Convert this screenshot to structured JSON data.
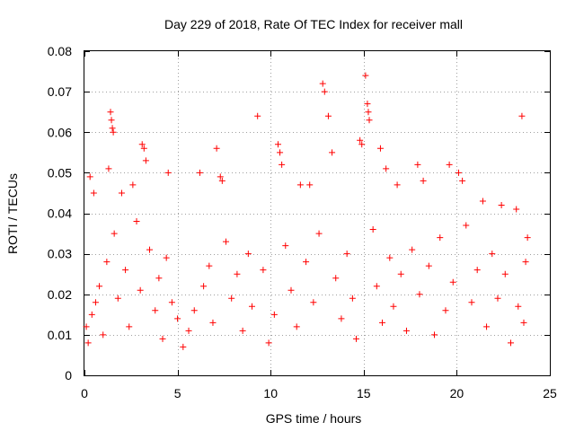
{
  "chart_data": {
    "type": "scatter",
    "title": "Day 229 of 2018, Rate Of TEC Index for receiver mall",
    "xlabel": "GPS time / hours",
    "ylabel": "ROTI / TECUs",
    "xlim": [
      0,
      25
    ],
    "ylim": [
      0,
      0.08
    ],
    "x_ticks": [
      0,
      5,
      10,
      15,
      20,
      25
    ],
    "y_ticks": [
      0,
      0.01,
      0.02,
      0.03,
      0.04,
      0.05,
      0.06,
      0.07,
      0.08
    ],
    "x_tick_labels": [
      "0",
      "5",
      "10",
      "15",
      "20",
      "25"
    ],
    "y_tick_labels": [
      "0",
      "0.01",
      "0.02",
      "0.03",
      "0.04",
      "0.05",
      "0.06",
      "0.07",
      "0.08"
    ],
    "grid": true,
    "marker": "+",
    "color": "#ff0000",
    "series": [
      {
        "name": "ROTI",
        "points": [
          [
            0.3,
            0.049
          ],
          [
            0.5,
            0.045
          ],
          [
            1.3,
            0.051
          ],
          [
            1.4,
            0.065
          ],
          [
            1.45,
            0.063
          ],
          [
            1.5,
            0.061
          ],
          [
            1.55,
            0.06
          ],
          [
            2.0,
            0.045
          ],
          [
            2.6,
            0.047
          ],
          [
            3.1,
            0.057
          ],
          [
            3.2,
            0.056
          ],
          [
            3.3,
            0.053
          ],
          [
            4.5,
            0.05
          ],
          [
            6.2,
            0.05
          ],
          [
            7.1,
            0.056
          ],
          [
            7.3,
            0.049
          ],
          [
            7.4,
            0.048
          ],
          [
            9.3,
            0.064
          ],
          [
            10.4,
            0.057
          ],
          [
            10.5,
            0.055
          ],
          [
            10.6,
            0.052
          ],
          [
            11.6,
            0.047
          ],
          [
            12.1,
            0.047
          ],
          [
            12.8,
            0.072
          ],
          [
            12.9,
            0.07
          ],
          [
            13.1,
            0.064
          ],
          [
            13.3,
            0.055
          ],
          [
            14.8,
            0.058
          ],
          [
            14.9,
            0.057
          ],
          [
            15.1,
            0.074
          ],
          [
            15.2,
            0.067
          ],
          [
            15.25,
            0.065
          ],
          [
            15.3,
            0.063
          ],
          [
            15.9,
            0.056
          ],
          [
            16.2,
            0.051
          ],
          [
            16.8,
            0.047
          ],
          [
            17.9,
            0.052
          ],
          [
            18.2,
            0.048
          ],
          [
            19.6,
            0.052
          ],
          [
            20.1,
            0.05
          ],
          [
            20.3,
            0.048
          ],
          [
            21.4,
            0.043
          ],
          [
            22.4,
            0.042
          ],
          [
            23.2,
            0.041
          ],
          [
            23.5,
            0.064
          ],
          [
            23.8,
            0.034
          ],
          [
            0.1,
            0.012
          ],
          [
            0.2,
            0.008
          ],
          [
            0.4,
            0.015
          ],
          [
            0.6,
            0.018
          ],
          [
            0.8,
            0.022
          ],
          [
            1.0,
            0.01
          ],
          [
            1.2,
            0.028
          ],
          [
            1.6,
            0.035
          ],
          [
            1.8,
            0.019
          ],
          [
            2.2,
            0.026
          ],
          [
            2.4,
            0.012
          ],
          [
            2.8,
            0.038
          ],
          [
            3.0,
            0.021
          ],
          [
            3.5,
            0.031
          ],
          [
            3.8,
            0.016
          ],
          [
            4.0,
            0.024
          ],
          [
            4.2,
            0.009
          ],
          [
            4.4,
            0.029
          ],
          [
            4.7,
            0.018
          ],
          [
            5.0,
            0.014
          ],
          [
            5.3,
            0.007
          ],
          [
            5.6,
            0.011
          ],
          [
            5.9,
            0.016
          ],
          [
            6.4,
            0.022
          ],
          [
            6.7,
            0.027
          ],
          [
            6.9,
            0.013
          ],
          [
            7.6,
            0.033
          ],
          [
            7.9,
            0.019
          ],
          [
            8.2,
            0.025
          ],
          [
            8.5,
            0.011
          ],
          [
            8.8,
            0.03
          ],
          [
            9.0,
            0.017
          ],
          [
            9.6,
            0.026
          ],
          [
            9.9,
            0.008
          ],
          [
            10.2,
            0.015
          ],
          [
            10.8,
            0.032
          ],
          [
            11.1,
            0.021
          ],
          [
            11.4,
            0.012
          ],
          [
            11.9,
            0.028
          ],
          [
            12.3,
            0.018
          ],
          [
            12.6,
            0.035
          ],
          [
            13.5,
            0.024
          ],
          [
            13.8,
            0.014
          ],
          [
            14.1,
            0.03
          ],
          [
            14.4,
            0.019
          ],
          [
            14.6,
            0.009
          ],
          [
            15.5,
            0.036
          ],
          [
            15.7,
            0.022
          ],
          [
            16.0,
            0.013
          ],
          [
            16.4,
            0.029
          ],
          [
            16.6,
            0.017
          ],
          [
            17.0,
            0.025
          ],
          [
            17.3,
            0.011
          ],
          [
            17.6,
            0.031
          ],
          [
            18.0,
            0.02
          ],
          [
            18.5,
            0.027
          ],
          [
            18.8,
            0.01
          ],
          [
            19.1,
            0.034
          ],
          [
            19.4,
            0.016
          ],
          [
            19.8,
            0.023
          ],
          [
            20.5,
            0.037
          ],
          [
            20.8,
            0.018
          ],
          [
            21.1,
            0.026
          ],
          [
            21.6,
            0.012
          ],
          [
            21.9,
            0.03
          ],
          [
            22.2,
            0.019
          ],
          [
            22.6,
            0.025
          ],
          [
            22.9,
            0.008
          ],
          [
            23.3,
            0.017
          ],
          [
            23.6,
            0.013
          ],
          [
            23.7,
            0.028
          ]
        ]
      }
    ]
  }
}
